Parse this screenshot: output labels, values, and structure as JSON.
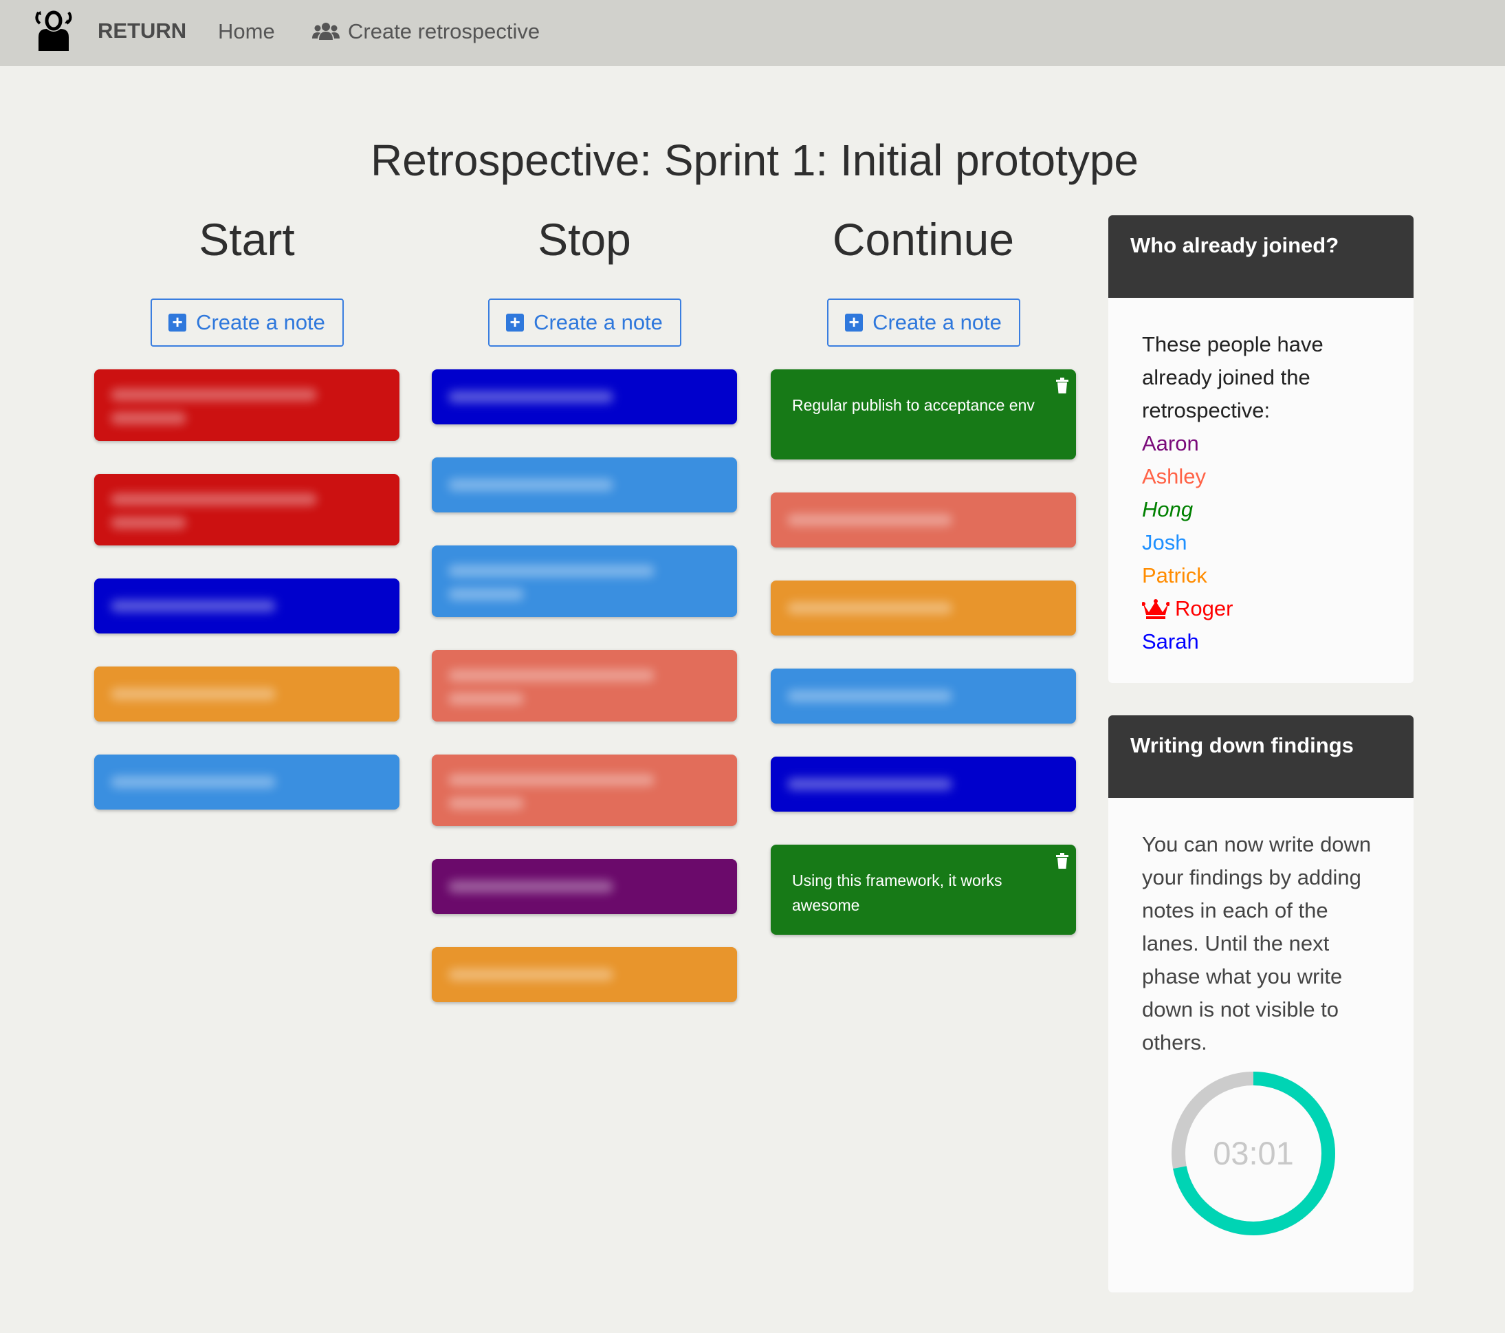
{
  "nav": {
    "brand": "RETURN",
    "home": "Home",
    "create": "Create retrospective",
    "logo_icon": "person-refresh-logo",
    "create_icon": "users-icon"
  },
  "title": "Retrospective: Sprint 1: Initial prototype",
  "create_note_label": "Create a note",
  "columns": [
    {
      "title": "Start",
      "notes": [
        {
          "color": "#cc1111",
          "lines": 2,
          "blurred": true
        },
        {
          "color": "#cc1111",
          "lines": 2,
          "blurred": true
        },
        {
          "color": "#0000cc",
          "lines": 1,
          "blurred": true
        },
        {
          "color": "#e8952c",
          "lines": 1,
          "blurred": true
        },
        {
          "color": "#3a8fe0",
          "lines": 1,
          "blurred": true
        }
      ]
    },
    {
      "title": "Stop",
      "notes": [
        {
          "color": "#0000cc",
          "lines": 1,
          "blurred": true
        },
        {
          "color": "#3a8fe0",
          "lines": 1,
          "blurred": true
        },
        {
          "color": "#3a8fe0",
          "lines": 2,
          "blurred": true
        },
        {
          "color": "#e26d5a",
          "lines": 2,
          "blurred": true
        },
        {
          "color": "#e26d5a",
          "lines": 2,
          "blurred": true
        },
        {
          "color": "#6b0a6b",
          "lines": 1,
          "blurred": true
        },
        {
          "color": "#e8952c",
          "lines": 1,
          "blurred": true
        }
      ]
    },
    {
      "title": "Continue",
      "notes": [
        {
          "color": "#177a17",
          "text": "Regular publish to acceptance env",
          "blurred": false
        },
        {
          "color": "#e26d5a",
          "lines": 1,
          "blurred": true
        },
        {
          "color": "#e8952c",
          "lines": 1,
          "blurred": true
        },
        {
          "color": "#3a8fe0",
          "lines": 1,
          "blurred": true
        },
        {
          "color": "#0000cc",
          "lines": 1,
          "blurred": true
        },
        {
          "color": "#177a17",
          "text": "Using this framework, it works awesome",
          "blurred": false
        }
      ]
    }
  ],
  "joined": {
    "title": "Who already joined?",
    "intro": "These people have already joined the retrospective:",
    "people": [
      {
        "name": "Aaron",
        "color": "#7a0a7a"
      },
      {
        "name": "Ashley",
        "color": "#ff6347"
      },
      {
        "name": "Hong",
        "color": "#008000",
        "italic": true
      },
      {
        "name": "Josh",
        "color": "#1e90ff"
      },
      {
        "name": "Patrick",
        "color": "#ff8c00"
      },
      {
        "name": "Roger",
        "color": "#ff0000",
        "icon": "crown-icon"
      },
      {
        "name": "Sarah",
        "color": "#0000ff"
      }
    ]
  },
  "phase": {
    "title": "Writing down findings",
    "text": "You can now write down your findings by adding notes in each of the lanes. Until the next phase what you write down is not visible to others.",
    "timer": "03:01",
    "remaining_fraction": 0.72,
    "timer_color": "#00d4b4"
  }
}
